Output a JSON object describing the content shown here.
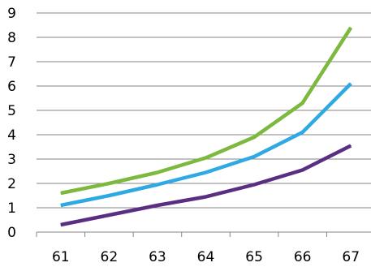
{
  "chart_data": {
    "type": "line",
    "title": "",
    "xlabel": "",
    "ylabel": "",
    "x": [
      "61",
      "62",
      "63",
      "64",
      "65",
      "66",
      "67"
    ],
    "y_ticks": [
      "0",
      "1",
      "2",
      "3",
      "4",
      "5",
      "6",
      "7",
      "8",
      "9"
    ],
    "ylim": [
      0,
      9
    ],
    "grid": "horizontal",
    "legend": "none",
    "series": [
      {
        "color": "#7DB93F",
        "values": [
          1.6,
          2.0,
          2.45,
          3.05,
          3.9,
          5.3,
          8.4
        ]
      },
      {
        "color": "#2FA9E4",
        "values": [
          1.1,
          1.5,
          1.95,
          2.45,
          3.1,
          4.1,
          6.1
        ]
      },
      {
        "color": "#5A2E82",
        "values": [
          0.3,
          0.7,
          1.1,
          1.45,
          1.95,
          2.55,
          3.55
        ]
      }
    ]
  }
}
